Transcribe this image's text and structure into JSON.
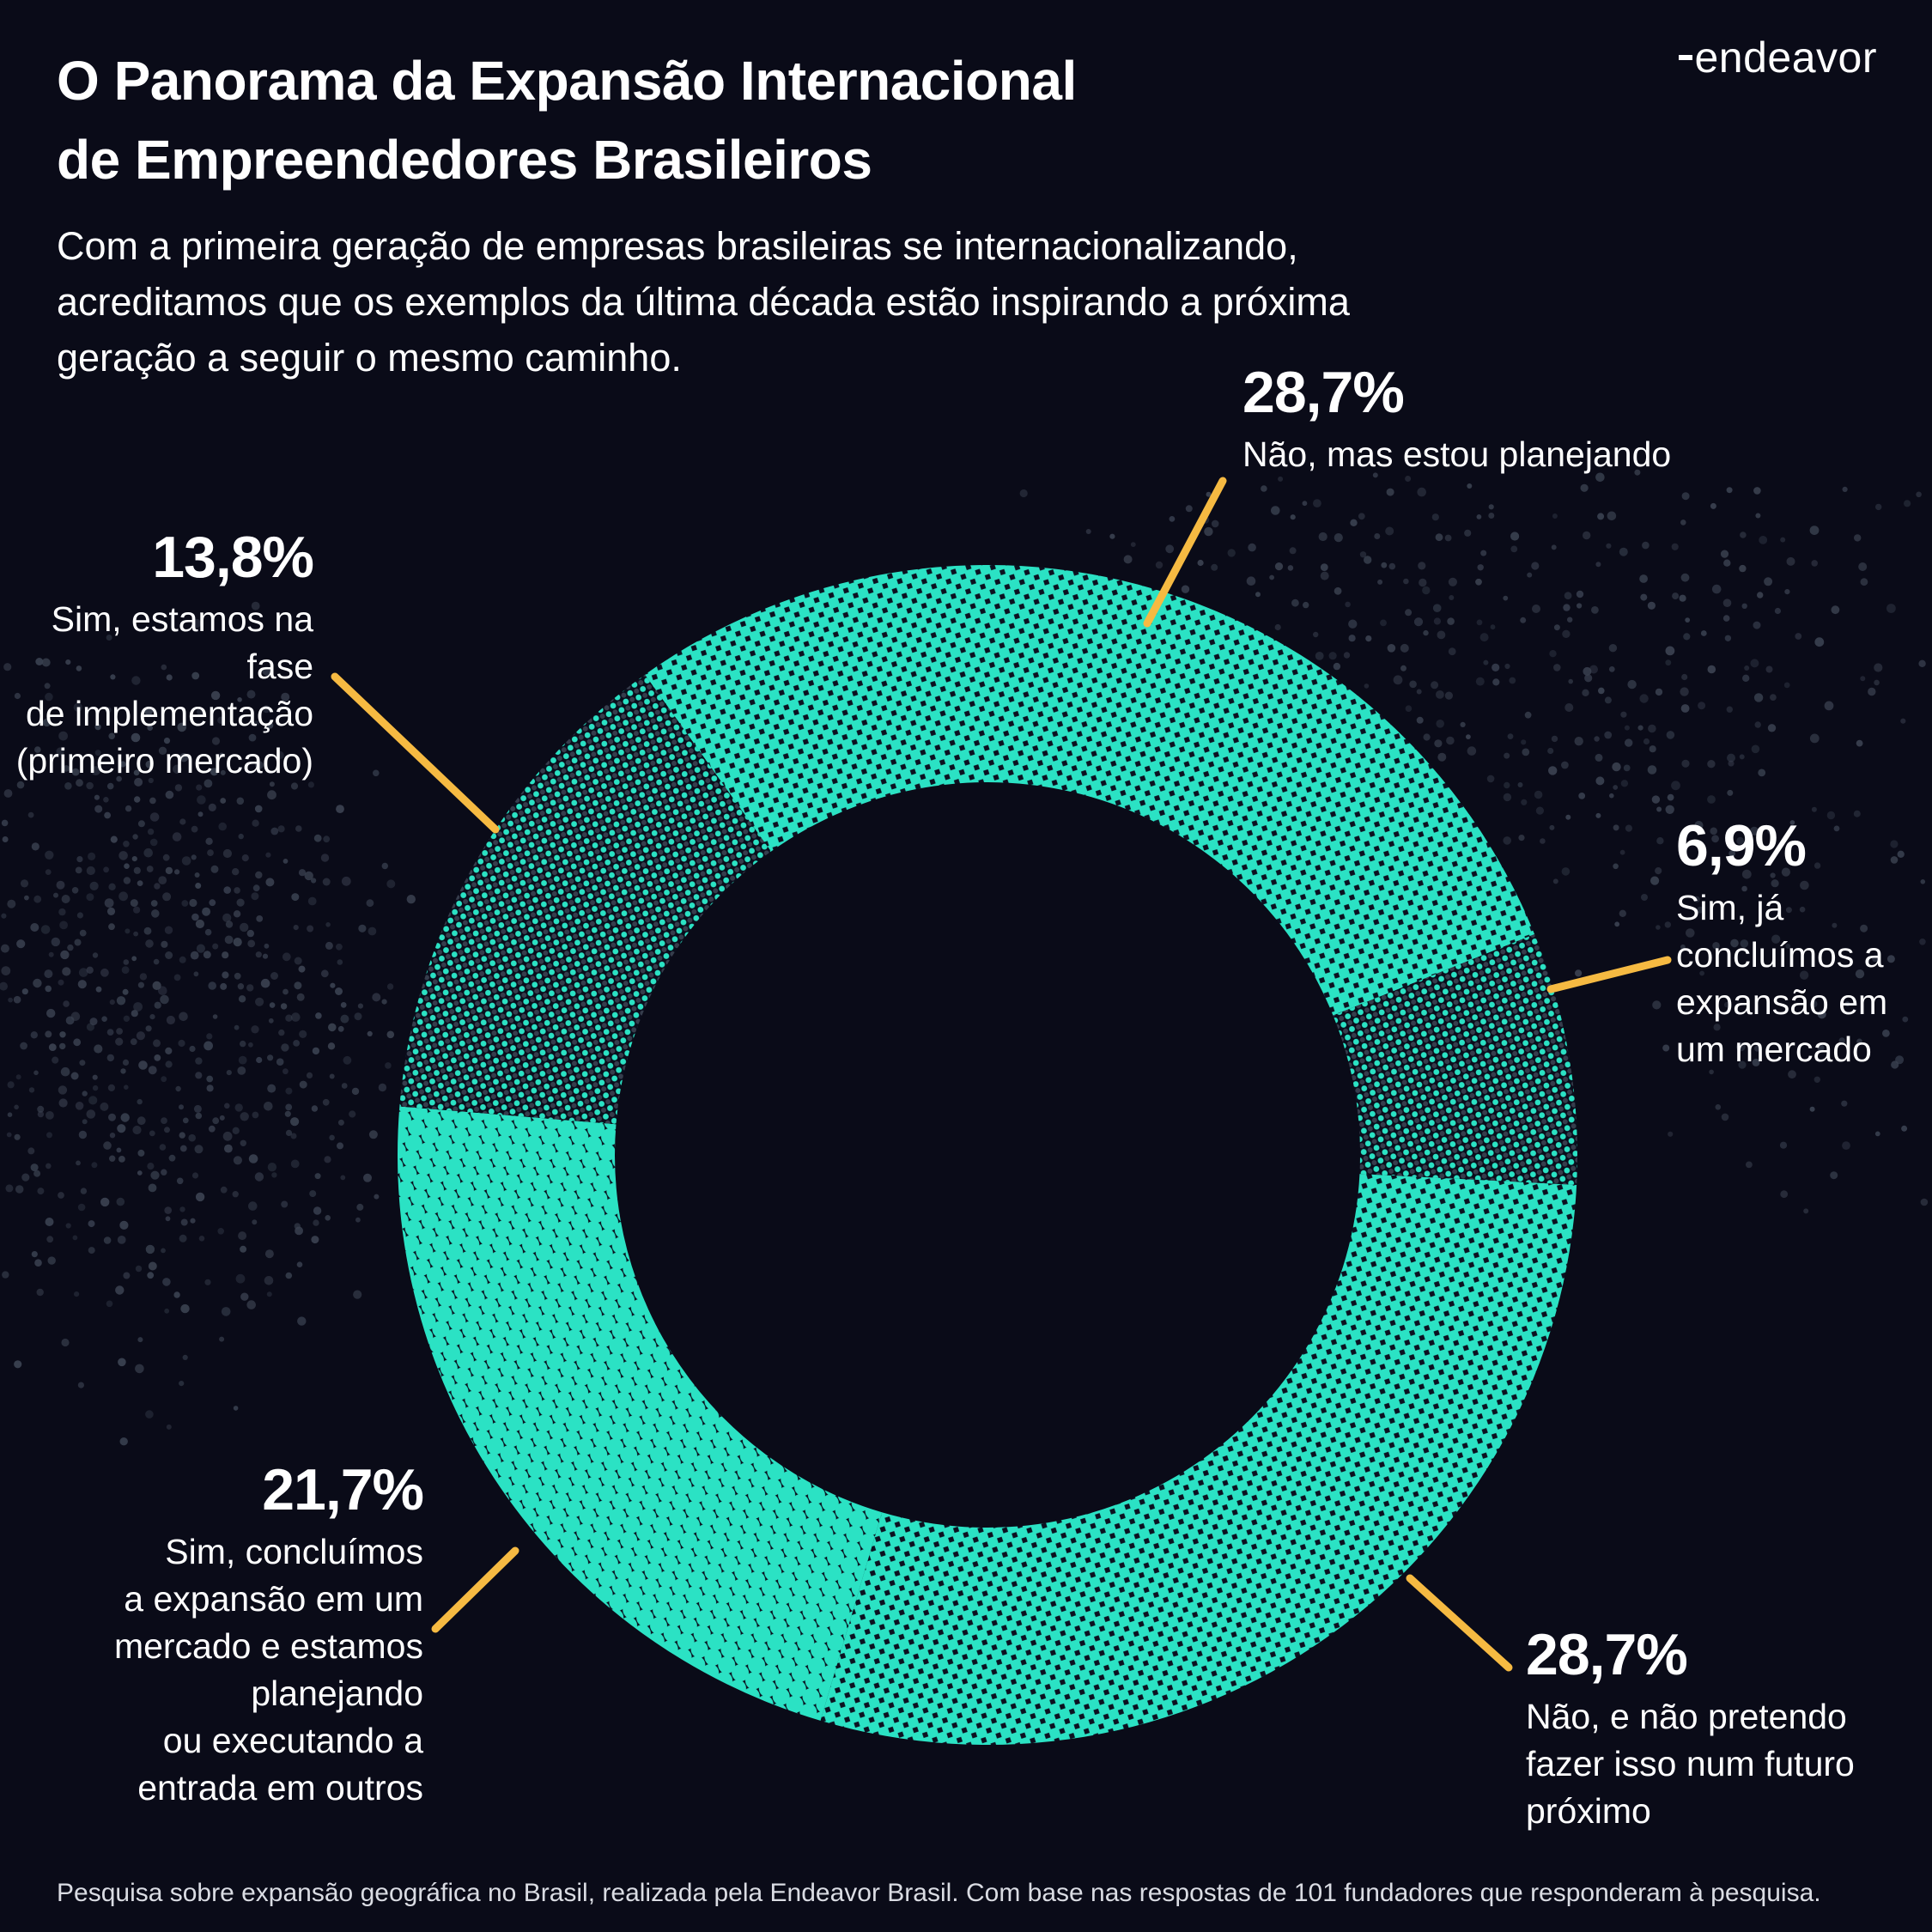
{
  "logo": {
    "text": "endeavor"
  },
  "header": {
    "title": "O Panorama da Expansão Internacional\nde Empreendedores Brasileiros",
    "subtitle": "Com a primeira geração de empresas brasileiras se internacionalizando,\nacreditamos que os exemplos da última década estão inspirando a próxima\ngeração a seguir o mesmo caminho."
  },
  "footer": {
    "source": "Pesquisa sobre expansão geográfica no Brasil, realizada pela Endeavor Brasil. Com base nas respostas de 101 fundadores que responderam à pesquisa."
  },
  "chart_data": {
    "type": "pie",
    "subtype": "donut",
    "title": "O Panorama da Expansão Internacional de Empreendedores Brasileiros",
    "unit": "%",
    "sample_note": "101 fundadores",
    "start_angle_deg": -35.5,
    "segments": [
      {
        "value_display": "28,7%",
        "value": 28.7,
        "label": "Não, mas estou planejando",
        "label_lines": "Não, mas estou planejando",
        "pattern": "halftone-bright"
      },
      {
        "value_display": "6,9%",
        "value": 6.9,
        "label": "Sim, já concluímos a expansão em um mercado",
        "label_lines": "Sim, já\nconcluímos a\nexpansão em\num mercado",
        "pattern": "halftone-dark"
      },
      {
        "value_display": "28,7%",
        "value": 28.7,
        "label": "Não, e não pretendo fazer isso num futuro próximo",
        "label_lines": "Não, e não pretendo\nfazer isso num futuro\npróximo",
        "pattern": "halftone-bright"
      },
      {
        "value_display": "21,7%",
        "value": 21.7,
        "label": "Sim, concluímos a expansão em um mercado e estamos planejando ou executando a entrada em outros",
        "label_lines": "Sim, concluímos\na expansão em um\nmercado e estamos\nplanejando\nou executando a\nentrada em outros",
        "pattern": "dots-large"
      },
      {
        "value_display": "13,8%",
        "value": 13.8,
        "label": "Sim, estamos na fase de implementação (primeiro mercado)",
        "label_lines": "Sim, estamos na fase\nde implementação\n(primeiro mercado)",
        "pattern": "halftone-dark"
      }
    ],
    "colors": {
      "teal": "#2BE2C4",
      "background": "#0A0B18",
      "dark_dot": "#0C1020",
      "map_dot": "#3A4150",
      "leader_line": "#F6BA42",
      "text": "#FFFFFF"
    }
  }
}
